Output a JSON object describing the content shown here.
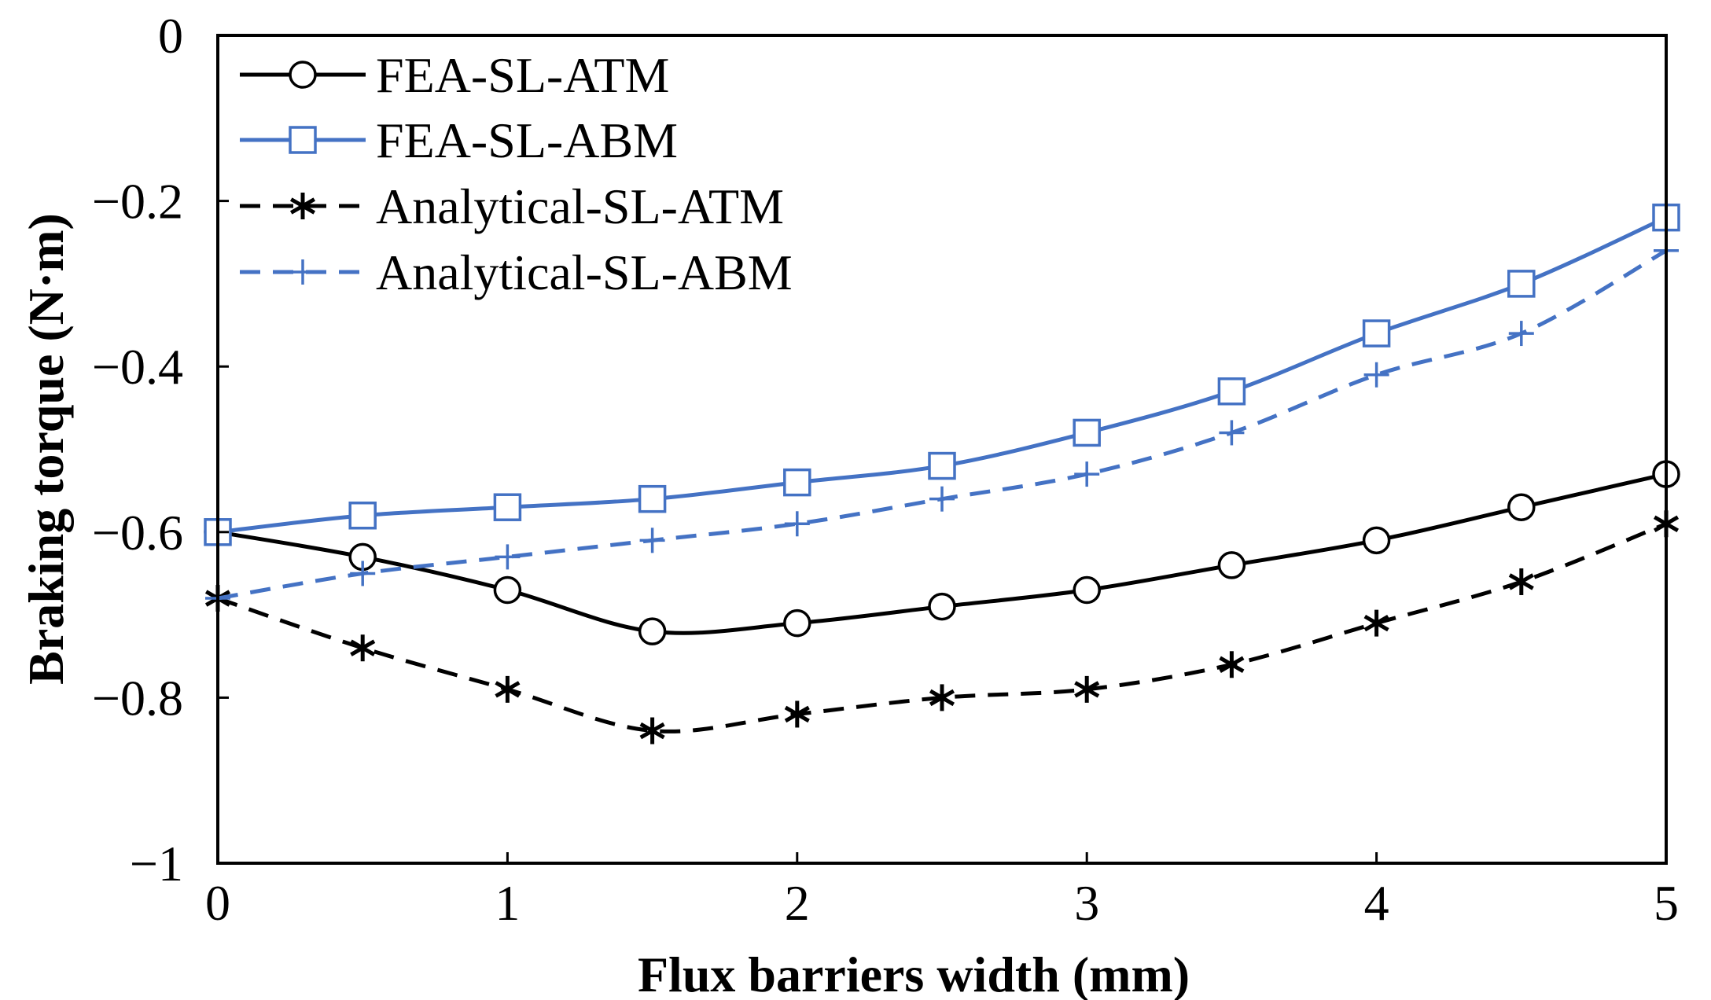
{
  "chart_data": {
    "type": "line",
    "title": "",
    "xlabel": "Flux barriers width (mm)",
    "ylabel": "Braking torque (N·m)",
    "xlim": [
      0,
      5
    ],
    "ylim": [
      -1,
      0
    ],
    "x": [
      0,
      0.5,
      1,
      1.5,
      2,
      2.5,
      3,
      3.5,
      4,
      4.5,
      5
    ],
    "x_ticks": [
      0,
      1,
      2,
      3,
      4,
      5
    ],
    "x_tick_labels": [
      "0",
      "1",
      "2",
      "3",
      "4",
      "5"
    ],
    "y_ticks": [
      0,
      -0.2,
      -0.4,
      -0.6,
      -0.8,
      -1
    ],
    "y_tick_labels": [
      "0",
      "−0.2",
      "−0.4",
      "−0.6",
      "−0.8",
      "−1"
    ],
    "legend_position": "top-left",
    "series": [
      {
        "name": "FEA-SL-ATM",
        "color": "#000000",
        "dash": "solid",
        "marker": "circle",
        "values": [
          -0.6,
          -0.63,
          -0.67,
          -0.72,
          -0.71,
          -0.69,
          -0.67,
          -0.64,
          -0.61,
          -0.57,
          -0.53
        ]
      },
      {
        "name": "FEA-SL-ABM",
        "color": "#4472C4",
        "dash": "solid",
        "marker": "square",
        "values": [
          -0.6,
          -0.58,
          -0.57,
          -0.56,
          -0.54,
          -0.52,
          -0.48,
          -0.43,
          -0.36,
          -0.3,
          -0.22
        ]
      },
      {
        "name": "Analytical-SL-ATM",
        "color": "#000000",
        "dash": "dashed",
        "marker": "asterisk",
        "values": [
          -0.68,
          -0.74,
          -0.79,
          -0.84,
          -0.82,
          -0.8,
          -0.79,
          -0.76,
          -0.71,
          -0.66,
          -0.59
        ]
      },
      {
        "name": "Analytical-SL-ABM",
        "color": "#4472C4",
        "dash": "dashed",
        "marker": "plus",
        "values": [
          -0.68,
          -0.65,
          -0.63,
          -0.61,
          -0.59,
          -0.56,
          -0.53,
          -0.48,
          -0.41,
          -0.36,
          -0.26
        ]
      }
    ]
  }
}
